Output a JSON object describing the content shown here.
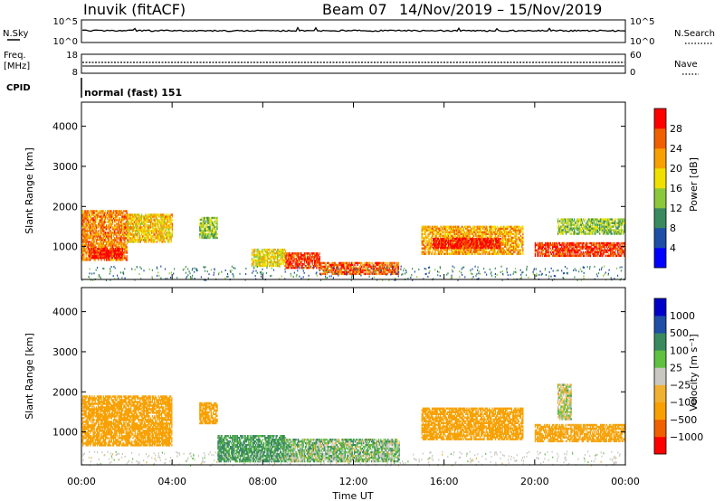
{
  "header": {
    "station": "Inuvik (fitACF)",
    "beam": "Beam 07",
    "date_range": "14/Nov/2019 – 15/Nov/2019"
  },
  "top_panel": {
    "left_label": "N.Sky",
    "left_ticks": [
      "10^5",
      "10^0"
    ],
    "right_label": "N.Search",
    "right_ticks": [
      "10^5",
      "10^0"
    ]
  },
  "freq_panel": {
    "left_label_1": "Freq.",
    "left_label_2": "[MHz]",
    "left_ticks": [
      "18",
      "8"
    ],
    "right_label": "Nave",
    "right_ticks": [
      "60",
      "0"
    ]
  },
  "cpid": {
    "label": "CPID",
    "value": "normal (fast) 151"
  },
  "colors": {
    "power_scale": [
      "#0000ff",
      "#1e4ea6",
      "#3a8a60",
      "#8cc83c",
      "#f0e000",
      "#f8a000",
      "#f06000",
      "#ff0000"
    ],
    "velocity_scale": [
      "#ff0000",
      "#f06000",
      "#f8a000",
      "#f0b030",
      "#c8c8c0",
      "#60c040",
      "#3a8a60",
      "#1e4ea6",
      "#0000c8"
    ]
  },
  "chart_data": [
    {
      "type": "heatmap",
      "title": "",
      "ylabel": "Slant Range [km]",
      "xlabel": "",
      "ylim": [
        180,
        4600
      ],
      "yticks": [
        "1000",
        "2000",
        "3000",
        "4000"
      ],
      "colorbar_label": "Power [dB]",
      "colorbar_ticks": [
        "4",
        "8",
        "12",
        "16",
        "20",
        "24",
        "28"
      ],
      "colorbar_range": [
        0,
        32
      ],
      "regions": [
        {
          "t0": 0.0,
          "t1": 2.0,
          "r0": 650,
          "r1": 1900,
          "v": 24
        },
        {
          "t0": 0.3,
          "t1": 1.8,
          "r0": 700,
          "r1": 950,
          "v": 30
        },
        {
          "t0": 2.0,
          "t1": 4.0,
          "r0": 1100,
          "r1": 1800,
          "v": 20
        },
        {
          "t0": 5.2,
          "t1": 6.0,
          "r0": 1200,
          "r1": 1700,
          "v": 14
        },
        {
          "t0": 7.5,
          "t1": 9.0,
          "r0": 500,
          "r1": 950,
          "v": 18
        },
        {
          "t0": 9.0,
          "t1": 10.5,
          "r0": 450,
          "r1": 850,
          "v": 28
        },
        {
          "t0": 10.5,
          "t1": 14.0,
          "r0": 300,
          "r1": 600,
          "v": 26
        },
        {
          "t0": 15.0,
          "t1": 19.5,
          "r0": 800,
          "r1": 1500,
          "v": 22
        },
        {
          "t0": 15.5,
          "t1": 18.5,
          "r0": 950,
          "r1": 1200,
          "v": 30
        },
        {
          "t0": 20.0,
          "t1": 24.0,
          "r0": 750,
          "r1": 1100,
          "v": 28
        },
        {
          "t0": 21.0,
          "t1": 24.0,
          "r0": 1300,
          "r1": 1700,
          "v": 14
        }
      ]
    },
    {
      "type": "heatmap",
      "title": "",
      "ylabel": "Slant Range [km]",
      "xlabel": "Time UT",
      "ylim": [
        180,
        4600
      ],
      "yticks": [
        "1000",
        "2000",
        "3000",
        "4000"
      ],
      "xticks": [
        "00:00",
        "04:00",
        "08:00",
        "12:00",
        "16:00",
        "20:00",
        "00:00"
      ],
      "colorbar_label": "Velocity [m s⁻¹]",
      "colorbar_ticks": [
        "1000",
        "500",
        "100",
        "25",
        "−25",
        "−100",
        "−500",
        "−1000"
      ],
      "regions": [
        {
          "t0": 0.0,
          "t1": 4.0,
          "r0": 650,
          "r1": 1900,
          "v": -300
        },
        {
          "t0": 5.2,
          "t1": 6.0,
          "r0": 1200,
          "r1": 1700,
          "v": -200
        },
        {
          "t0": 6.0,
          "t1": 9.0,
          "r0": 250,
          "r1": 900,
          "v": 150
        },
        {
          "t0": 9.0,
          "t1": 14.0,
          "r0": 250,
          "r1": 800,
          "v": 60
        },
        {
          "t0": 15.0,
          "t1": 19.5,
          "r0": 800,
          "r1": 1600,
          "v": -200
        },
        {
          "t0": 20.0,
          "t1": 24.0,
          "r0": 750,
          "r1": 1200,
          "v": -150
        },
        {
          "t0": 21.0,
          "t1": 21.6,
          "r0": 1300,
          "r1": 2200,
          "v": 0
        }
      ]
    }
  ]
}
